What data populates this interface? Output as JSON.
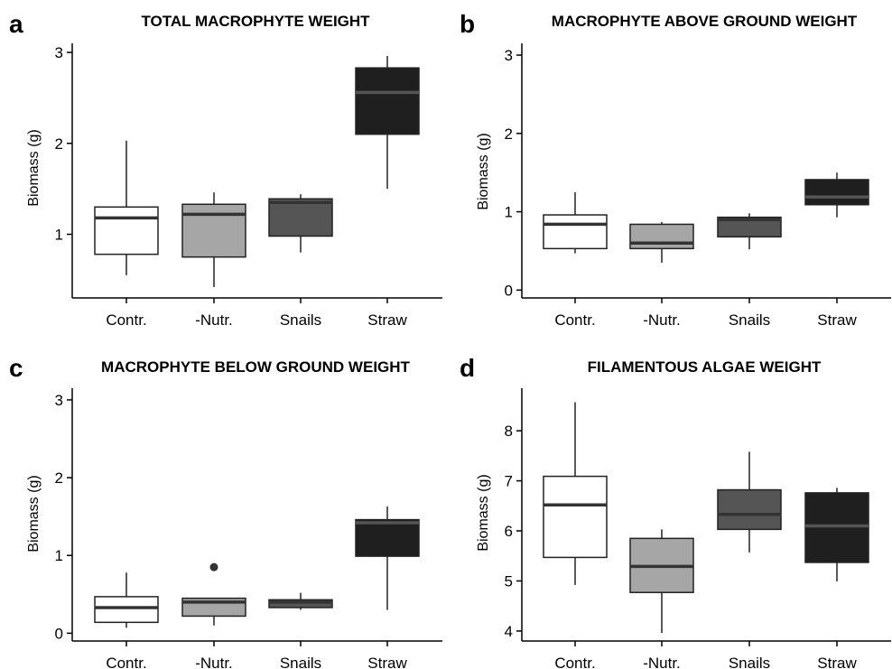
{
  "chart_data": [
    {
      "panel": "a",
      "type": "boxplot",
      "title": "TOTAL MACROPHYTE WEIGHT",
      "ylabel": "Biomass (g)",
      "ylim": [
        0.3,
        3.1
      ],
      "yticks": [
        1,
        2,
        3
      ],
      "categories": [
        "Contr.",
        "-Nutr.",
        "Snails",
        "Straw"
      ],
      "colors": [
        "#ffffff",
        "#a6a6a6",
        "#555555",
        "#1f1f1f"
      ],
      "boxes": [
        {
          "min": 0.55,
          "q1": 0.78,
          "median": 1.18,
          "q3": 1.3,
          "max": 2.03,
          "outliers": []
        },
        {
          "min": 0.42,
          "q1": 0.75,
          "median": 1.22,
          "q3": 1.33,
          "max": 1.46,
          "outliers": []
        },
        {
          "min": 0.8,
          "q1": 0.98,
          "median": 1.35,
          "q3": 1.39,
          "max": 1.44,
          "outliers": []
        },
        {
          "min": 1.5,
          "q1": 2.1,
          "median": 2.56,
          "q3": 2.83,
          "max": 2.96,
          "outliers": []
        }
      ]
    },
    {
      "panel": "b",
      "type": "boxplot",
      "title": "MACROPHYTE ABOVE GROUND WEIGHT",
      "ylabel": "Biomass (g)",
      "ylim": [
        -0.1,
        3.15
      ],
      "yticks": [
        0,
        1,
        2,
        3
      ],
      "categories": [
        "Contr.",
        "-Nutr.",
        "Snails",
        "Straw"
      ],
      "colors": [
        "#ffffff",
        "#a6a6a6",
        "#555555",
        "#1f1f1f"
      ],
      "boxes": [
        {
          "min": 0.47,
          "q1": 0.53,
          "median": 0.84,
          "q3": 0.96,
          "max": 1.25,
          "outliers": []
        },
        {
          "min": 0.35,
          "q1": 0.53,
          "median": 0.6,
          "q3": 0.84,
          "max": 0.87,
          "outliers": []
        },
        {
          "min": 0.52,
          "q1": 0.68,
          "median": 0.9,
          "q3": 0.93,
          "max": 0.98,
          "outliers": []
        },
        {
          "min": 0.93,
          "q1": 1.09,
          "median": 1.19,
          "q3": 1.41,
          "max": 1.5,
          "outliers": []
        }
      ]
    },
    {
      "panel": "c",
      "type": "boxplot",
      "title": "MACROPHYTE BELOW GROUND WEIGHT",
      "ylabel": "Biomass (g)",
      "ylim": [
        -0.1,
        3.15
      ],
      "yticks": [
        0,
        1,
        2,
        3
      ],
      "categories": [
        "Contr.",
        "-Nutr.",
        "Snails",
        "Straw"
      ],
      "colors": [
        "#ffffff",
        "#a6a6a6",
        "#555555",
        "#1f1f1f"
      ],
      "boxes": [
        {
          "min": 0.07,
          "q1": 0.14,
          "median": 0.33,
          "q3": 0.47,
          "max": 0.78,
          "outliers": []
        },
        {
          "min": 0.1,
          "q1": 0.22,
          "median": 0.4,
          "q3": 0.45,
          "max": 0.45,
          "outliers": [
            0.85
          ]
        },
        {
          "min": 0.3,
          "q1": 0.33,
          "median": 0.4,
          "q3": 0.43,
          "max": 0.52,
          "outliers": []
        },
        {
          "min": 0.3,
          "q1": 0.99,
          "median": 1.42,
          "q3": 1.46,
          "max": 1.63,
          "outliers": []
        }
      ]
    },
    {
      "panel": "d",
      "type": "boxplot",
      "title": "FILAMENTOUS ALGAE WEIGHT",
      "ylabel": "Biomass (g)",
      "ylim": [
        3.8,
        8.85
      ],
      "yticks": [
        4,
        5,
        6,
        7,
        8
      ],
      "categories": [
        "Contr.",
        "-Nutr.",
        "Snails",
        "Straw"
      ],
      "colors": [
        "#ffffff",
        "#a6a6a6",
        "#555555",
        "#1f1f1f"
      ],
      "boxes": [
        {
          "min": 4.92,
          "q1": 5.47,
          "median": 6.52,
          "q3": 7.09,
          "max": 8.57,
          "outliers": []
        },
        {
          "min": 3.96,
          "q1": 4.77,
          "median": 5.29,
          "q3": 5.85,
          "max": 6.03,
          "outliers": []
        },
        {
          "min": 5.57,
          "q1": 6.03,
          "median": 6.33,
          "q3": 6.82,
          "max": 7.58,
          "outliers": []
        },
        {
          "min": 4.99,
          "q1": 5.37,
          "median": 6.1,
          "q3": 6.76,
          "max": 6.86,
          "outliers": []
        }
      ]
    }
  ]
}
